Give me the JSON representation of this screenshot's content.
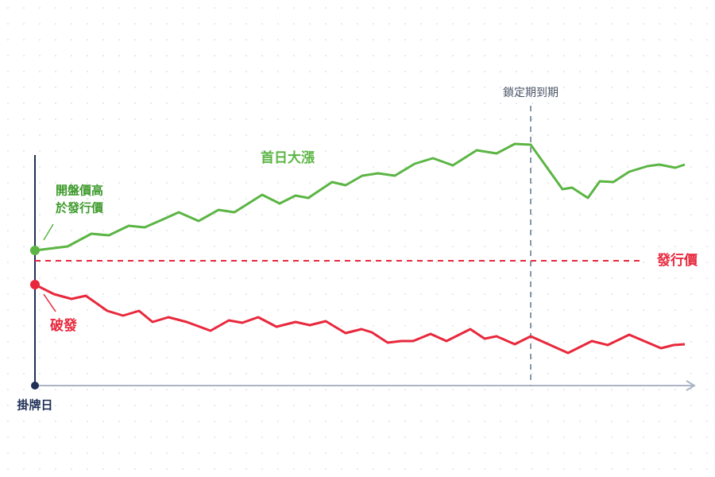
{
  "chart_data": {
    "type": "line",
    "xlim": [
      0,
      831
    ],
    "ylim": [
      0,
      350
    ],
    "series": [
      {
        "name": "首日大漲",
        "color": "#5bb544",
        "x": [
          0,
          41,
          71,
          93,
          118,
          138,
          161,
          181,
          206,
          231,
          251,
          286,
          308,
          328,
          344,
          374,
          391,
          412,
          432,
          453,
          478,
          501,
          526,
          556,
          581,
          604,
          624,
          664,
          676,
          696,
          711,
          728,
          748,
          771,
          786,
          806,
          818
        ],
        "values": [
          170,
          175,
          191,
          189,
          201,
          199,
          209,
          218,
          207,
          221,
          218,
          240,
          229,
          239,
          236,
          256,
          252,
          264,
          267,
          264,
          279,
          286,
          277,
          296,
          292,
          304,
          303,
          247,
          249,
          236,
          257,
          256,
          269,
          276,
          278,
          274,
          278
        ]
      },
      {
        "name": "破發",
        "color": "#e8283c",
        "x": [
          0,
          24,
          46,
          64,
          91,
          111,
          131,
          148,
          168,
          191,
          221,
          244,
          261,
          281,
          304,
          328,
          346,
          366,
          391,
          411,
          424,
          444,
          461,
          476,
          498,
          518,
          548,
          566,
          581,
          604,
          624,
          671,
          701,
          721,
          748,
          788,
          804,
          818
        ],
        "values": [
          127,
          115,
          109,
          113,
          94,
          88,
          94,
          80,
          86,
          80,
          69,
          82,
          79,
          86,
          74,
          80,
          76,
          81,
          66,
          71,
          67,
          54,
          56,
          56,
          65,
          56,
          71,
          59,
          62,
          52,
          62,
          41,
          56,
          51,
          64,
          47,
          51,
          52
        ]
      }
    ],
    "reference_lines": [
      {
        "axis": "y",
        "value": 157,
        "label": "發行價",
        "color": "#e8283c"
      },
      {
        "axis": "x",
        "value": 624,
        "label": "鎖定期到期",
        "color": "#8a97a8"
      }
    ],
    "annotations": [
      {
        "lines": [
          "開盤價高",
          "於發行價"
        ],
        "color": "#3e9a2c"
      }
    ],
    "x_origin_label": "掛牌日"
  }
}
